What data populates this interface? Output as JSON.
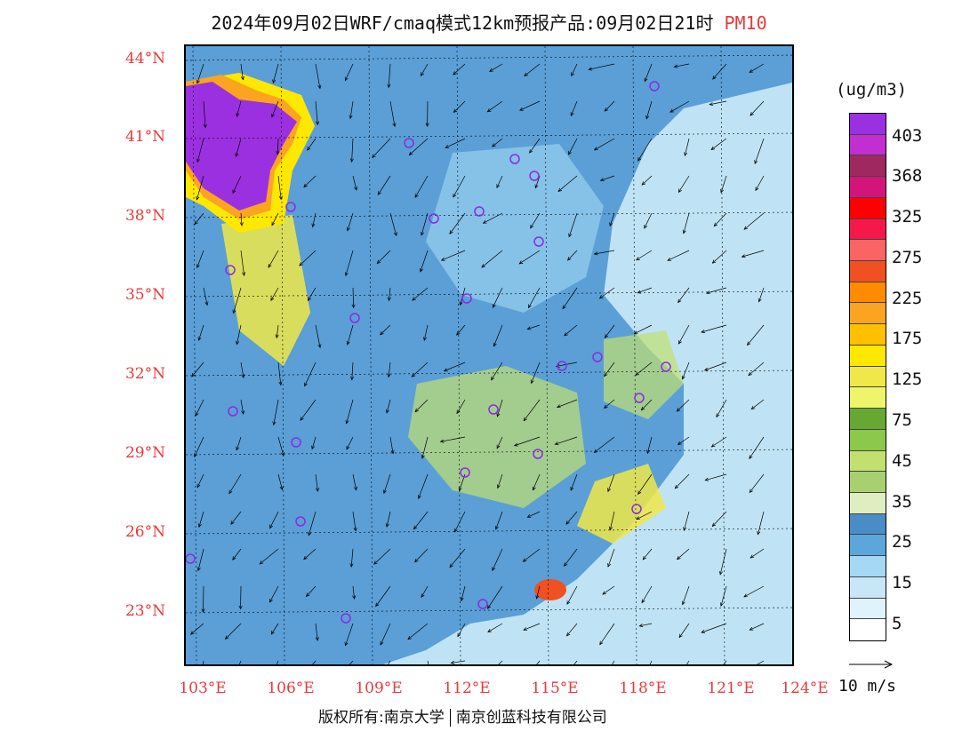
{
  "header": {
    "title": "2024年09月02日WRF/cmaq模式12km预报产品:09月02日21时",
    "variable": "PM10"
  },
  "map": {
    "lat_labels": [
      "44°N",
      "41°N",
      "38°N",
      "35°N",
      "32°N",
      "29°N",
      "26°N",
      "23°N"
    ],
    "lon_labels": [
      "103°E",
      "106°E",
      "109°E",
      "112°E",
      "115°E",
      "118°E",
      "121°E",
      "124°E"
    ],
    "station_marker_color": "#8a2be2",
    "land_color": "#5b9fd6",
    "sea_color": "#bfe3f4"
  },
  "legend": {
    "unit": "(ug/m3)",
    "labels": [
      "403",
      "368",
      "325",
      "275",
      "225",
      "175",
      "125",
      "75",
      "45",
      "35",
      "25",
      "15",
      "5"
    ],
    "colors": [
      "#9b30e0",
      "#c22ed0",
      "#a02860",
      "#d4147a",
      "#ff0000",
      "#f5184a",
      "#fa6464",
      "#f05022",
      "#ff8c00",
      "#fba420",
      "#ffc000",
      "#ffe800",
      "#f0e848",
      "#eef56a",
      "#66a832",
      "#8cc84a",
      "#c2e070",
      "#a8d070",
      "#dfeec0",
      "#4a8cc6",
      "#5ca6dc",
      "#a4d8f4",
      "#c8e6f6",
      "#e0f2fc",
      "#ffffff"
    ]
  },
  "vector_reference": {
    "label": "10 m/s"
  },
  "credits": {
    "university": "版权所有:南京大学",
    "company": "南京创蓝科技有限公司"
  }
}
